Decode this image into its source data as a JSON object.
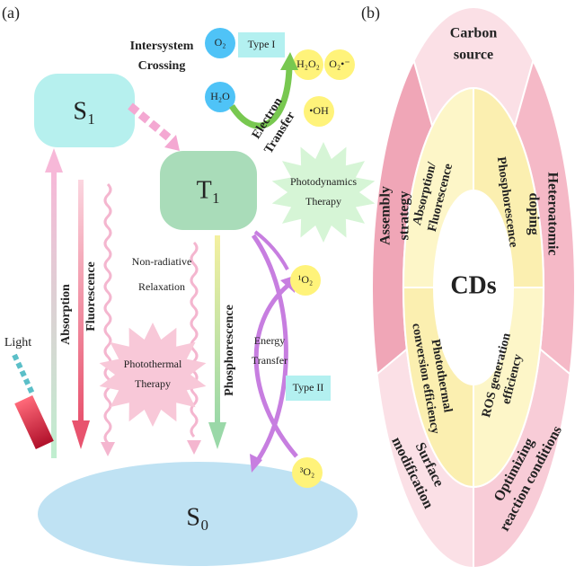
{
  "panel_a": {
    "label": "(a)",
    "light": "Light",
    "s1": "S₁",
    "t1": "T₁",
    "s0": "S₀",
    "intersystem_crossing": [
      "Intersystem",
      "Crossing"
    ],
    "absorption": "Absorption",
    "fluorescence": "Fluorescence",
    "non_radiative_relaxation": [
      "Non-radiative",
      "Relaxation"
    ],
    "photothermal_therapy": [
      "Photothermal",
      "Therapy"
    ],
    "phosphorescence": "Phosphorescence",
    "type_i": "Type I",
    "electron_transfer": [
      "Electron",
      "Transfer"
    ],
    "photodynamics_therapy": [
      "Photodynamics",
      "Therapy"
    ],
    "energy_transfer": [
      "Energy",
      "Transfer"
    ],
    "type_ii": "Type II",
    "species": {
      "o2": "O₂",
      "h2o": "H₂O",
      "h2o2": "H₂O₂",
      "superoxide": "O₂•⁻",
      "hydroxyl": "•OH",
      "singlet_oxygen": "¹O₂",
      "triplet_oxygen": "³O₂"
    }
  },
  "panel_b": {
    "label": "(b)",
    "center": "CDs",
    "outer": [
      [
        "Carbon",
        "source"
      ],
      [
        "Heteroatomic",
        "doping"
      ],
      [
        "Optimizing",
        "reaction conditions"
      ],
      [
        "Surface",
        "modification"
      ],
      [
        "Assembly",
        "strategy"
      ]
    ],
    "inner": [
      [
        "Absorption/",
        "Fluorescence"
      ],
      [
        "Phosphorescence"
      ],
      [
        "ROS generation",
        "efficiency"
      ],
      [
        "Photothermal",
        "conversion efficiency"
      ]
    ]
  }
}
